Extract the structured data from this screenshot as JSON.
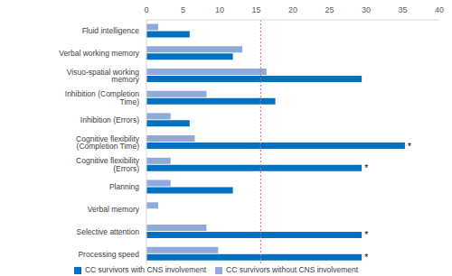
{
  "chart_data": {
    "type": "bar",
    "orientation": "horizontal",
    "categories": [
      "Fluid intelligence",
      "Verbal working memory",
      "Visuo-spatial working memory",
      "Inhibition (Completion Time)",
      "Inhibition (Errors)",
      "Cognitive flexibility (Completion Time)",
      "Cognitive flexibility (Errors)",
      "Planning",
      "Verbal memory",
      "Selective attention",
      "Processing speed"
    ],
    "series": [
      {
        "name": "CC survivors without CNS involvement",
        "color": "#8eaadb",
        "values": [
          1.6,
          13.1,
          16.4,
          8.2,
          3.3,
          6.6,
          3.3,
          3.3,
          1.6,
          8.2,
          9.8
        ]
      },
      {
        "name": "CC survivors with CNS involvement",
        "color": "#0070c0",
        "values": [
          5.9,
          11.8,
          29.4,
          17.6,
          5.9,
          35.3,
          29.4,
          11.8,
          0,
          29.4,
          29.4
        ]
      }
    ],
    "xlim": [
      0,
      40
    ],
    "xticks": [
      0,
      5,
      10,
      15,
      20,
      25,
      30,
      35,
      40
    ],
    "grid": false,
    "legend": "bottom",
    "reference_line": {
      "value": 15.6,
      "color": "#e06666",
      "line_style": "dashed"
    },
    "annotations": [
      {
        "category": "Cognitive flexibility (Completion Time)",
        "text": "*"
      },
      {
        "category": "Cognitive flexibility (Errors)",
        "text": "*"
      },
      {
        "category": "Selective attention",
        "text": "*"
      },
      {
        "category": "Processing speed",
        "text": "*"
      }
    ]
  }
}
